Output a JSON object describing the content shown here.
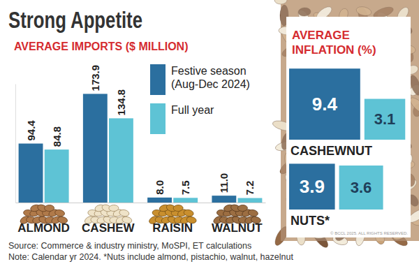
{
  "title": "Strong Appetite",
  "chart_data": [
    {
      "type": "bar",
      "title": "AVERAGE IMPORTS ($ MILLION)",
      "categories": [
        "ALMOND",
        "CASHEW",
        "RAISIN",
        "WALNUT"
      ],
      "series": [
        {
          "name": "Festive season (Aug-Dec 2024)",
          "color": "#2b6f9f",
          "values": [
            94.4,
            173.9,
            8.0,
            11.0
          ],
          "value_labels": [
            "94.4",
            "173.9",
            "8.0",
            "11.0"
          ]
        },
        {
          "name": "Full year",
          "color": "#5ec3d5",
          "values": [
            84.8,
            134.8,
            7.5,
            7.2
          ]
        }
      ],
      "ylim": [
        0,
        190
      ],
      "tick_labels": "x",
      "data_labels": true,
      "legend": "top-right",
      "grid": false
    },
    {
      "type": "square",
      "title": "AVERAGE INFLATION (%)",
      "categories": [
        "CASHEWNUT",
        "NUTS*"
      ],
      "series": [
        {
          "color": "#2b6f9f",
          "values": [
            9.4,
            3.9
          ]
        },
        {
          "color": "#5ec3d5",
          "values": [
            3.1,
            3.6
          ]
        }
      ],
      "ylim": [
        0,
        10
      ],
      "tick_labels": "x",
      "data_labels": true
    }
  ],
  "source": "Source: Commerce & industry ministry, MoSPI, ET calculations",
  "note": "Note: Calendar yr 2024. *Nuts include almond, pistachio, walnut, hazelnut",
  "copyright": "© BCCL 2025. ALL RIGHTS RESERVED."
}
